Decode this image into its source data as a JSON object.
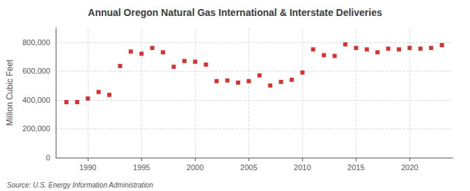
{
  "chart_data": {
    "type": "scatter",
    "title": "Annual Oregon Natural Gas International & Interstate Deliveries",
    "ylabel": "Million Cubic Feet",
    "source": "Source: U.S. Energy Information Administration",
    "x": [
      1988,
      1989,
      1990,
      1991,
      1992,
      1993,
      1994,
      1995,
      1996,
      1997,
      1998,
      1999,
      2000,
      2001,
      2002,
      2003,
      2004,
      2005,
      2006,
      2007,
      2008,
      2009,
      2010,
      2011,
      2012,
      2013,
      2014,
      2015,
      2016,
      2017,
      2018,
      2019,
      2020,
      2021,
      2022,
      2023
    ],
    "values": [
      385000,
      385000,
      410000,
      455000,
      435000,
      635000,
      735000,
      720000,
      760000,
      730000,
      630000,
      670000,
      665000,
      645000,
      530000,
      535000,
      520000,
      530000,
      570000,
      500000,
      525000,
      540000,
      590000,
      750000,
      710000,
      705000,
      785000,
      760000,
      750000,
      730000,
      755000,
      750000,
      760000,
      755000,
      760000,
      780000
    ],
    "color": "#cc0000",
    "marker": "square",
    "xlim": [
      1987,
      2024
    ],
    "xticks": [
      1990,
      1995,
      2000,
      2005,
      2010,
      2015,
      2020
    ],
    "ylim": [
      0,
      900000
    ],
    "yticks": [
      0,
      {
        "value": 200000,
        "label": "200,000"
      },
      {
        "value": 400000,
        "label": "400,000"
      },
      {
        "value": 600000,
        "label": "600,000"
      },
      {
        "value": 800000,
        "label": "800,000"
      }
    ],
    "grid": true
  }
}
